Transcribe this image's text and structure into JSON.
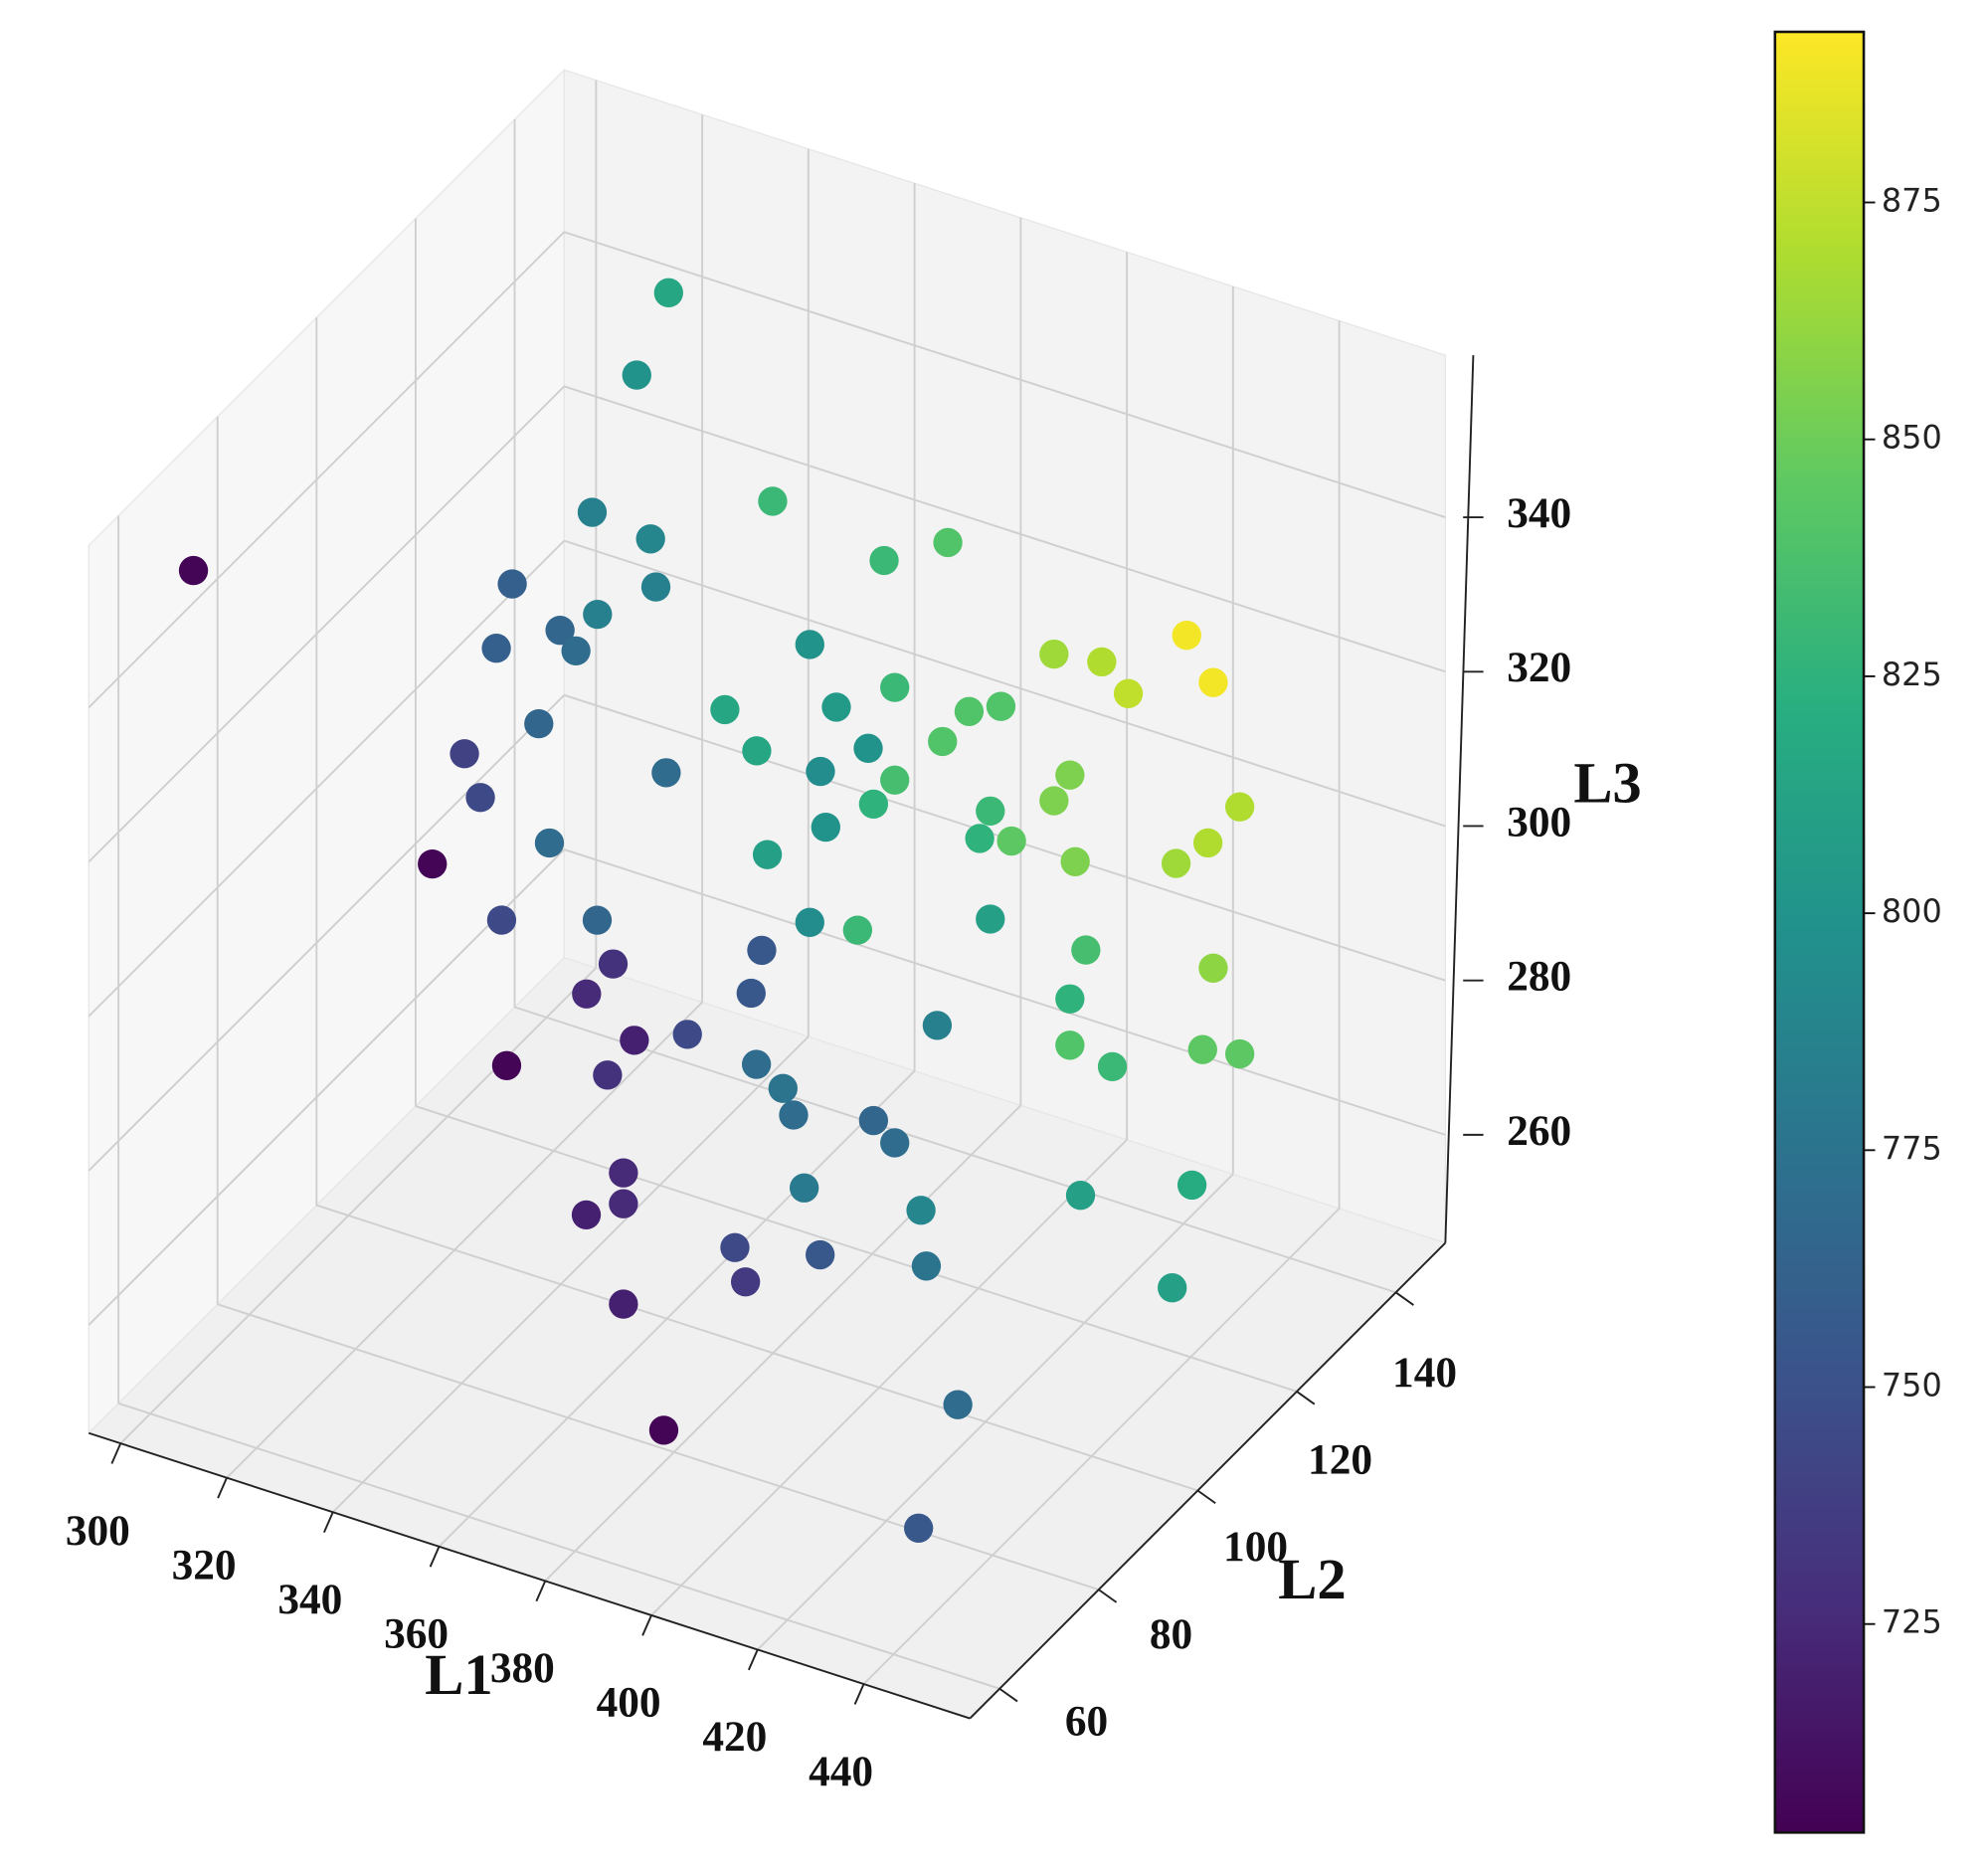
{
  "chart_data": {
    "type": "scatter3d",
    "x_label": "L1",
    "y_label": "L2",
    "z_label": "L3",
    "x": [
      323,
      317,
      296,
      351,
      372,
      384,
      317,
      328,
      329,
      329,
      338,
      318,
      326,
      341,
      358,
      404,
      413,
      429,
      434,
      418,
      374,
      342,
      363,
      388,
      394,
      334,
      320,
      348,
      369,
      383,
      358,
      360,
      374,
      407,
      323,
      370,
      404,
      439,
      392,
      341,
      336,
      361,
      350,
      390,
      396,
      408,
      427,
      433,
      327,
      345,
      358,
      367,
      392,
      348,
      376,
      410,
      434,
      343,
      374,
      407,
      355,
      352,
      362,
      382,
      374,
      375,
      380,
      407,
      415,
      432,
      439,
      382,
      370,
      374,
      377,
      384,
      409,
      430,
      377,
      370,
      406,
      398,
      387,
      407,
      400,
      444,
      377,
      440,
      393,
      441
    ],
    "y": [
      140,
      140,
      73,
      131,
      131,
      131,
      131,
      131,
      102,
      131,
      102,
      131,
      102,
      102,
      131,
      131,
      131,
      131,
      131,
      131,
      131,
      131,
      131,
      131,
      131,
      102,
      102,
      131,
      131,
      131,
      102,
      131,
      131,
      131,
      102,
      131,
      131,
      131,
      131,
      73,
      102,
      131,
      131,
      131,
      131,
      131,
      131,
      131,
      102,
      102,
      131,
      131,
      131,
      102,
      102,
      131,
      131,
      102,
      102,
      131,
      73,
      102,
      102,
      131,
      73,
      102,
      102,
      131,
      131,
      131,
      131,
      102,
      131,
      131,
      73,
      102,
      131,
      131,
      73,
      73,
      102,
      73,
      102,
      102,
      73,
      112,
      73,
      73,
      64,
      64
    ],
    "z": [
      345,
      333,
      346,
      330,
      327,
      332,
      321,
      320,
      333,
      314,
      329,
      308,
      324,
      327,
      313,
      322,
      323,
      330,
      325,
      320,
      311,
      301,
      306,
      311,
      313,
      316,
      309,
      297,
      302,
      306,
      315,
      297,
      299,
      307,
      304,
      295,
      303,
      310,
      299,
      318,
      301,
      290,
      284,
      295,
      296,
      296,
      300,
      304,
      289,
      293,
      277,
      278,
      285,
      288,
      296,
      285,
      288,
      283,
      290,
      278,
      295,
      279,
      282,
      269,
      298,
      281,
      279,
      272,
      271,
      277,
      278,
      276,
      254,
      252,
      286,
      267,
      253,
      259,
      282,
      279,
      269,
      281,
      259,
      262,
      277,
      261,
      269,
      270,
      262,
      260
    ],
    "values": [
      815,
      800,
      705,
      830,
      830,
      840,
      785,
      790,
      760,
      785,
      765,
      785,
      760,
      770,
      800,
      865,
      870,
      890,
      890,
      875,
      830,
      815,
      805,
      840,
      840,
      765,
      740,
      815,
      800,
      840,
      770,
      795,
      835,
      855,
      745,
      825,
      855,
      870,
      830,
      705,
      770,
      800,
      810,
      825,
      845,
      855,
      865,
      870,
      745,
      765,
      795,
      830,
      810,
      730,
      755,
      835,
      860,
      725,
      755,
      825,
      705,
      720,
      745,
      785,
      730,
      770,
      775,
      840,
      830,
      845,
      845,
      770,
      765,
      770,
      725,
      780,
      810,
      820,
      725,
      720,
      790,
      745,
      755,
      775,
      735,
      810,
      720,
      770,
      705,
      755
    ],
    "colormap": "viridis",
    "xlim": [
      294,
      460
    ],
    "ylim": [
      54,
      150
    ],
    "zlim": [
      246,
      361
    ],
    "clim": [
      703,
      893
    ],
    "xticks": [
      300,
      320,
      340,
      360,
      380,
      400,
      420,
      440
    ],
    "yticks": [
      60,
      80,
      100,
      120,
      140
    ],
    "zticks": [
      260,
      280,
      300,
      320,
      340
    ],
    "cticks": [
      725,
      750,
      775,
      800,
      825,
      850,
      875
    ],
    "grid": true
  }
}
